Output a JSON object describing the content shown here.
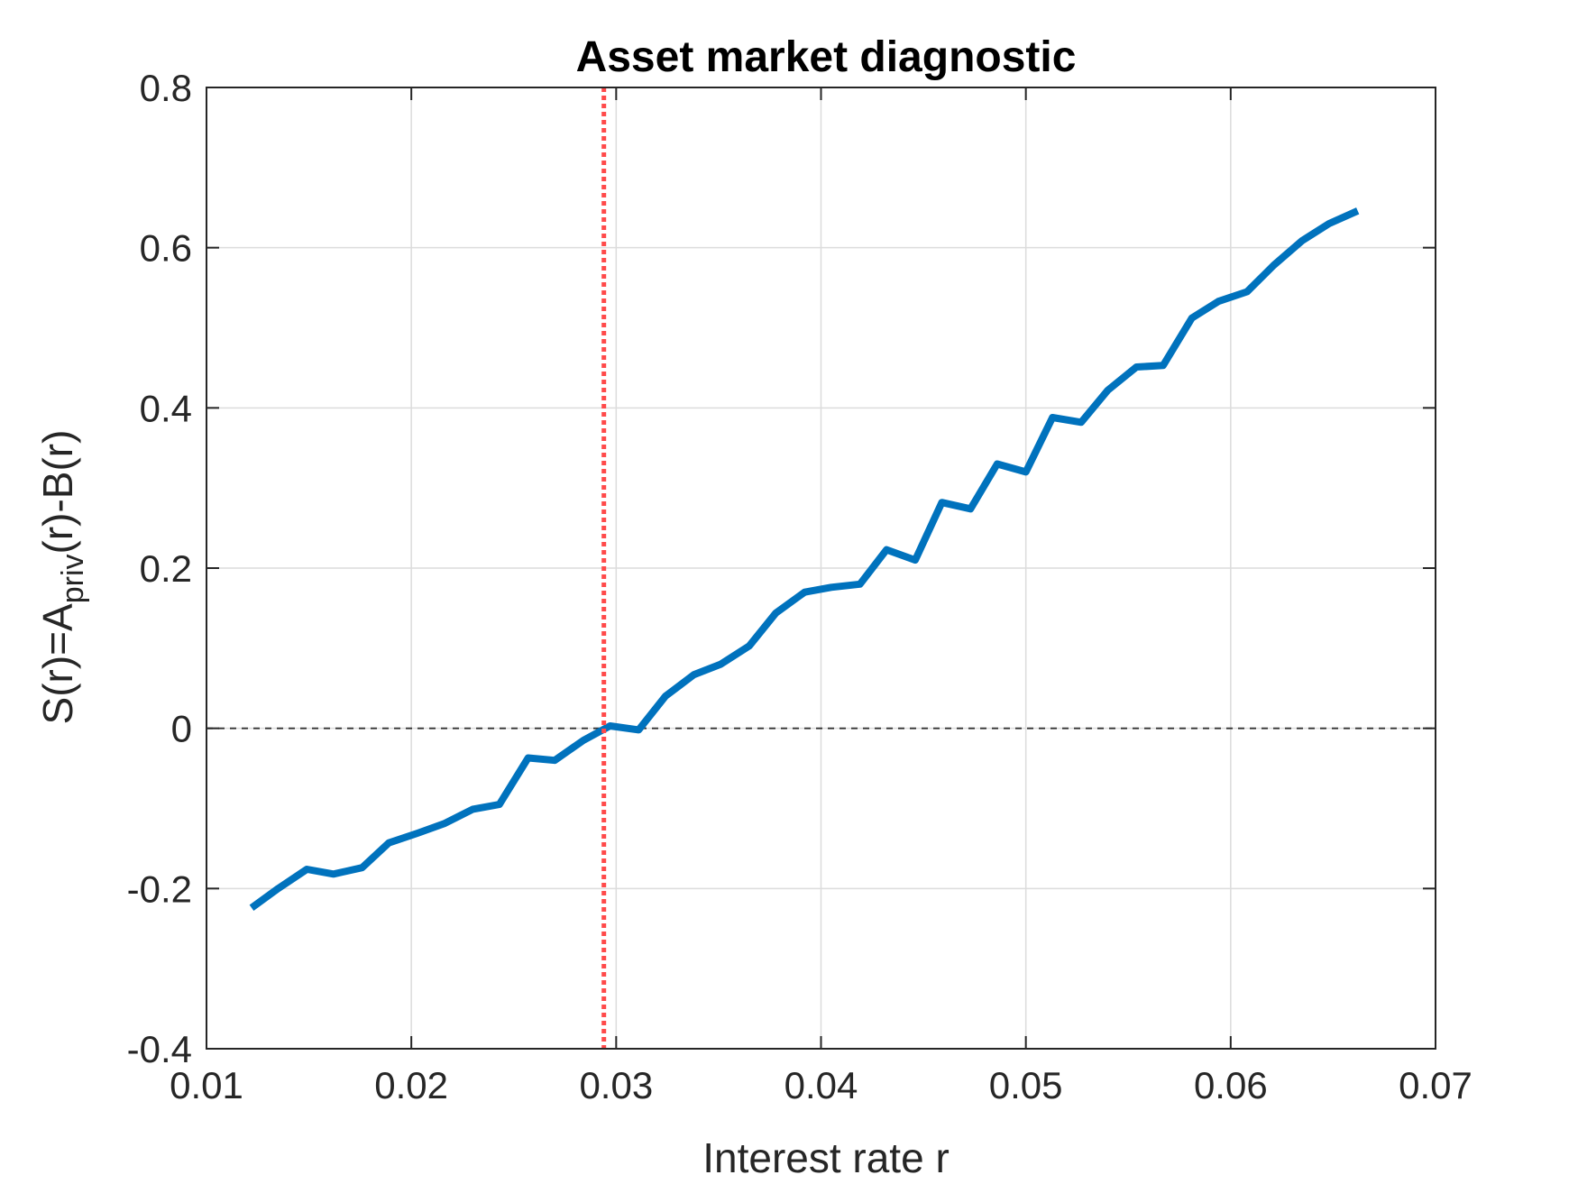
{
  "chart_data": {
    "type": "line",
    "title": "Asset market diagnostic",
    "xlabel": "Interest rate r",
    "ylabel": {
      "main": "S(r)=A",
      "sub": "priv",
      "tail": "(r)-B(r)"
    },
    "xlim": [
      0.01,
      0.07
    ],
    "ylim": [
      -0.4,
      0.8
    ],
    "xticks": [
      "0.01",
      "0.02",
      "0.03",
      "0.04",
      "0.05",
      "0.06",
      "0.07"
    ],
    "yticks": [
      "-0.4",
      "-0.2",
      "0",
      "0.2",
      "0.4",
      "0.6",
      "0.8"
    ],
    "grid": true,
    "zero_line": {
      "y": 0,
      "style": "dashed",
      "color": "#333333"
    },
    "equilibrium_line": {
      "x": 0.0294,
      "style": "dotted",
      "color": "#ff4a4a"
    },
    "series": [
      {
        "color": "#0072bd",
        "x": [
          0.0122,
          0.0135,
          0.0149,
          0.0162,
          0.0176,
          0.0189,
          0.0203,
          0.0216,
          0.023,
          0.0243,
          0.0257,
          0.027,
          0.0284,
          0.0297,
          0.0311,
          0.0324,
          0.0338,
          0.0351,
          0.0365,
          0.0378,
          0.0392,
          0.0405,
          0.0419,
          0.0432,
          0.0446,
          0.0459,
          0.0473,
          0.0486,
          0.05,
          0.0513,
          0.0527,
          0.054,
          0.0554,
          0.0567,
          0.0581,
          0.0594,
          0.0608,
          0.0621,
          0.0635,
          0.0648,
          0.0662
        ],
        "y": [
          -0.224,
          -0.2,
          -0.176,
          -0.182,
          -0.174,
          -0.143,
          -0.131,
          -0.119,
          -0.101,
          -0.095,
          -0.037,
          -0.04,
          -0.015,
          0.003,
          -0.002,
          0.04,
          0.067,
          0.08,
          0.103,
          0.144,
          0.17,
          0.176,
          0.18,
          0.223,
          0.21,
          0.282,
          0.274,
          0.33,
          0.32,
          0.388,
          0.382,
          0.422,
          0.451,
          0.453,
          0.512,
          0.533,
          0.545,
          0.578,
          0.609,
          0.63,
          0.646
        ]
      }
    ]
  }
}
